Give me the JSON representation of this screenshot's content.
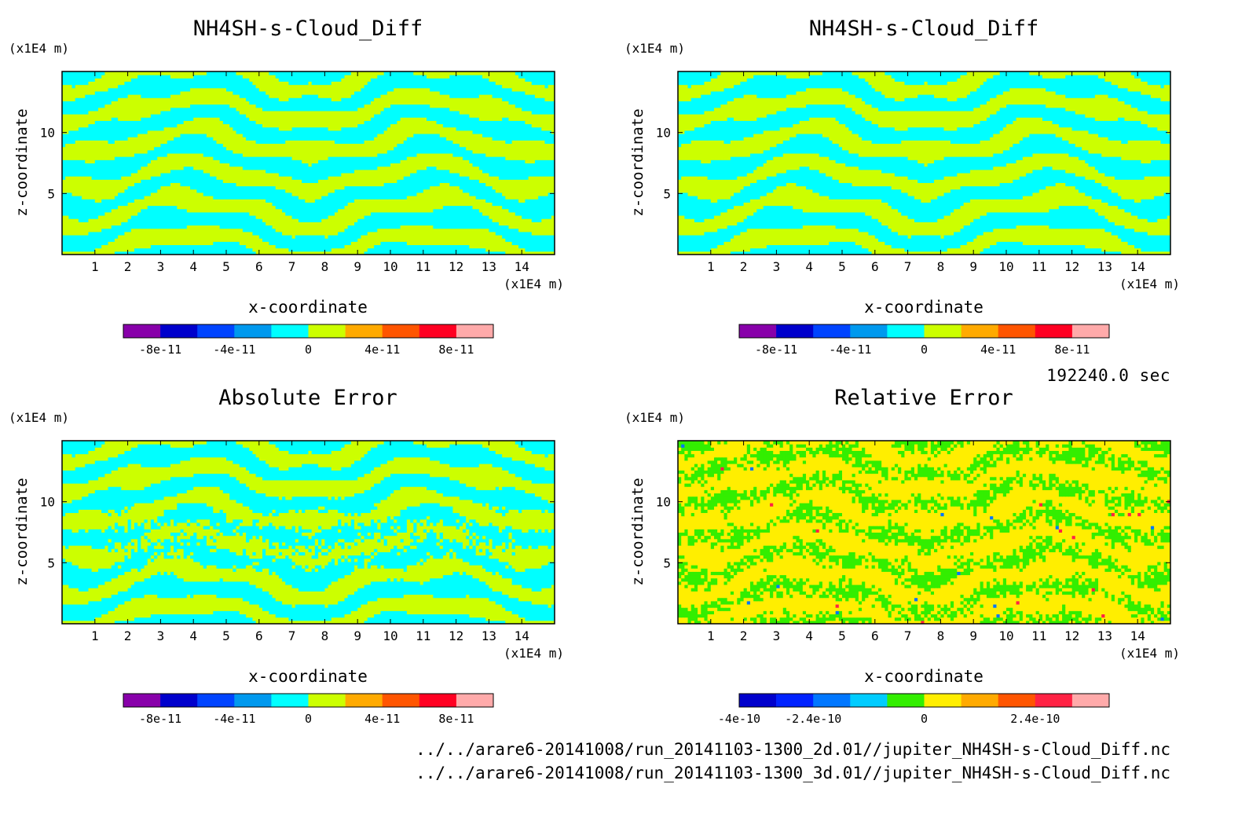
{
  "time_label": "192240.0 sec",
  "files": [
    "../../arare6-20141008/run_20141103-1300_2d.01//jupiter_NH4SH-s-Cloud_Diff.nc",
    "../../arare6-20141008/run_20141103-1300_3d.01//jupiter_NH4SH-s-Cloud_Diff.nc"
  ],
  "chart_data": [
    {
      "type": "heatmap",
      "title": "NH4SH-s-Cloud_Diff",
      "xlabel": "x-coordinate",
      "ylabel": "z-coordinate",
      "x_unit": "(x1E4 m)",
      "y_unit": "(x1E4 m)",
      "xlim": [
        0,
        15
      ],
      "ylim": [
        0,
        15
      ],
      "x_ticks": [
        "1",
        "2",
        "3",
        "4",
        "5",
        "6",
        "7",
        "8",
        "9",
        "10",
        "11",
        "12",
        "13",
        "14"
      ],
      "y_ticks": [
        "5",
        "10"
      ],
      "pattern": "stripes",
      "colors": [
        "#8800aa",
        "#0000cc",
        "#0044ff",
        "#0099ee",
        "#00ffff",
        "#ccff00",
        "#ffaa00",
        "#ff5500",
        "#ff0022",
        "#ffaaaa"
      ],
      "colorbar_labels": [
        "-8e-11",
        "-4e-11",
        "0",
        "4e-11",
        "8e-11"
      ],
      "colorbar_label_slots": [
        1,
        3,
        5,
        7,
        9
      ]
    },
    {
      "type": "heatmap",
      "title": "NH4SH-s-Cloud_Diff",
      "xlabel": "x-coordinate",
      "ylabel": "z-coordinate",
      "x_unit": "(x1E4 m)",
      "y_unit": "(x1E4 m)",
      "xlim": [
        0,
        15
      ],
      "ylim": [
        0,
        15
      ],
      "x_ticks": [
        "1",
        "2",
        "3",
        "4",
        "5",
        "6",
        "7",
        "8",
        "9",
        "10",
        "11",
        "12",
        "13",
        "14"
      ],
      "y_ticks": [
        "5",
        "10"
      ],
      "pattern": "stripes",
      "colors": [
        "#8800aa",
        "#0000cc",
        "#0044ff",
        "#0099ee",
        "#00ffff",
        "#ccff00",
        "#ffaa00",
        "#ff5500",
        "#ff0022",
        "#ffaaaa"
      ],
      "colorbar_labels": [
        "-8e-11",
        "-4e-11",
        "0",
        "4e-11",
        "8e-11"
      ],
      "colorbar_label_slots": [
        1,
        3,
        5,
        7,
        9
      ]
    },
    {
      "type": "heatmap",
      "title": "Absolute Error",
      "xlabel": "x-coordinate",
      "ylabel": "z-coordinate",
      "x_unit": "(x1E4 m)",
      "y_unit": "(x1E4 m)",
      "xlim": [
        0,
        15
      ],
      "ylim": [
        0,
        15
      ],
      "x_ticks": [
        "1",
        "2",
        "3",
        "4",
        "5",
        "6",
        "7",
        "8",
        "9",
        "10",
        "11",
        "12",
        "13",
        "14"
      ],
      "y_ticks": [
        "5",
        "10"
      ],
      "pattern": "noisy",
      "colors": [
        "#8800aa",
        "#0000cc",
        "#0044ff",
        "#0099ee",
        "#00ffff",
        "#ccff00",
        "#ffaa00",
        "#ff5500",
        "#ff0022",
        "#ffaaaa"
      ],
      "colorbar_labels": [
        "-8e-11",
        "-4e-11",
        "0",
        "4e-11",
        "8e-11"
      ],
      "colorbar_label_slots": [
        1,
        3,
        5,
        7,
        9
      ]
    },
    {
      "type": "heatmap",
      "title": "Relative Error",
      "xlabel": "x-coordinate",
      "ylabel": "z-coordinate",
      "x_unit": "(x1E4 m)",
      "y_unit": "(x1E4 m)",
      "xlim": [
        0,
        15
      ],
      "ylim": [
        0,
        15
      ],
      "x_ticks": [
        "1",
        "2",
        "3",
        "4",
        "5",
        "6",
        "7",
        "8",
        "9",
        "10",
        "11",
        "12",
        "13",
        "14"
      ],
      "y_ticks": [
        "5",
        "10"
      ],
      "pattern": "relative",
      "colors": [
        "#0000cc",
        "#0022ff",
        "#0077ff",
        "#00ccff",
        "#33ee00",
        "#ffee00",
        "#ffaa00",
        "#ff5500",
        "#ff2244",
        "#ffaaaa"
      ],
      "colorbar_labels": [
        "-4e-10",
        "-2.4e-10",
        "0",
        "2.4e-10"
      ],
      "colorbar_label_slots": [
        0,
        2,
        5,
        8
      ]
    }
  ]
}
